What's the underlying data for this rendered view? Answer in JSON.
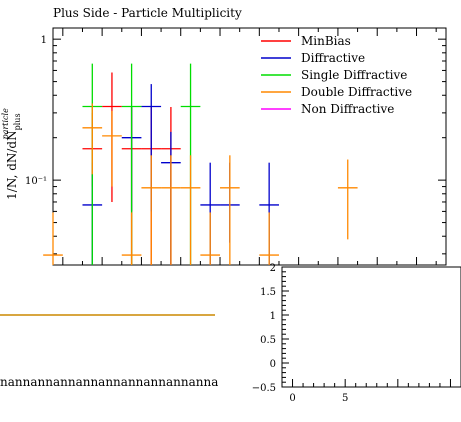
{
  "chart_data": [
    {
      "type": "scatter",
      "title": "Plus Side - Particle Multiplicity",
      "ylabel": "1/N, dN/dN",
      "ylabel_sup": "particle",
      "ylabel_sub": "plus",
      "y_scale": "log",
      "ylim": [
        0.025,
        1.2
      ],
      "xlim": [
        -0.5,
        19.5
      ],
      "ytick_labels": [
        "1",
        "10⁻¹"
      ],
      "ytick_values": [
        1,
        0.1
      ],
      "legend_placement": "top-right",
      "colors": {
        "MinBias": "#ff0000",
        "Diffractive": "#0000cc",
        "Single Diffractive": "#00dd00",
        "Double Diffractive": "#ff8800",
        "Non Diffractive": "#ff00ff"
      },
      "series": [
        {
          "name": "MinBias",
          "color": "#ff0000",
          "points": [
            {
              "x": 1.5,
              "y": 0.167,
              "ylo": 0.09,
              "yhi": 0.3
            },
            {
              "x": 2.5,
              "y": 0.333,
              "ylo": 0.07,
              "yhi": 0.58
            },
            {
              "x": 3.5,
              "y": 0.167,
              "ylo": 0.025,
              "yhi": 0.33
            },
            {
              "x": 4.5,
              "y": 0.167,
              "ylo": 0.025,
              "yhi": 0.33
            },
            {
              "x": 5.5,
              "y": 0.167,
              "ylo": 0.025,
              "yhi": 0.33
            }
          ]
        },
        {
          "name": "Diffractive",
          "color": "#0000cc",
          "points": [
            {
              "x": 1.5,
              "y": 0.0667,
              "ylo": 0.025,
              "yhi": 0.133
            },
            {
              "x": 3.5,
              "y": 0.2,
              "ylo": 0.06,
              "yhi": 0.33
            },
            {
              "x": 4.5,
              "y": 0.333,
              "ylo": 0.06,
              "yhi": 0.48
            },
            {
              "x": 5.5,
              "y": 0.133,
              "ylo": 0.025,
              "yhi": 0.22
            },
            {
              "x": 7.5,
              "y": 0.0667,
              "ylo": 0.025,
              "yhi": 0.133
            },
            {
              "x": 8.5,
              "y": 0.0667,
              "ylo": 0.036,
              "yhi": 0.133
            },
            {
              "x": 10.5,
              "y": 0.0667,
              "ylo": 0.025,
              "yhi": 0.133
            }
          ]
        },
        {
          "name": "Single Diffractive",
          "color": "#00dd00",
          "points": [
            {
              "x": 1.5,
              "y": 0.333,
              "ylo": 0.025,
              "yhi": 0.67
            },
            {
              "x": 3.5,
              "y": 0.333,
              "ylo": 0.025,
              "yhi": 0.67
            },
            {
              "x": 6.5,
              "y": 0.333,
              "ylo": 0.025,
              "yhi": 0.67
            }
          ]
        },
        {
          "name": "Double Diffractive",
          "color": "#ff8800",
          "points": [
            {
              "x": -0.5,
              "y": 0.0294,
              "ylo": 0.025,
              "yhi": 0.059
            },
            {
              "x": 1.5,
              "y": 0.235,
              "ylo": 0.11,
              "yhi": 0.35
            },
            {
              "x": 2.5,
              "y": 0.206,
              "ylo": 0.09,
              "yhi": 0.31
            },
            {
              "x": 3.5,
              "y": 0.0294,
              "ylo": 0.025,
              "yhi": 0.059
            },
            {
              "x": 4.5,
              "y": 0.0882,
              "ylo": 0.025,
              "yhi": 0.15
            },
            {
              "x": 5.5,
              "y": 0.0882,
              "ylo": 0.025,
              "yhi": 0.15
            },
            {
              "x": 6.5,
              "y": 0.0882,
              "ylo": 0.025,
              "yhi": 0.15
            },
            {
              "x": 7.5,
              "y": 0.0294,
              "ylo": 0.025,
              "yhi": 0.059
            },
            {
              "x": 8.5,
              "y": 0.0882,
              "ylo": 0.025,
              "yhi": 0.15
            },
            {
              "x": 10.5,
              "y": 0.0294,
              "ylo": 0.025,
              "yhi": 0.059
            },
            {
              "x": 14.5,
              "y": 0.0882,
              "ylo": 0.038,
              "yhi": 0.14
            }
          ]
        },
        {
          "name": "Non Diffractive",
          "color": "#ff00ff",
          "points": []
        }
      ]
    },
    {
      "type": "line",
      "title": "",
      "ylim": [
        -0.5,
        2
      ],
      "xlim": [
        -1,
        16
      ],
      "ytick_labels": [
        "2",
        "1.5",
        "1",
        "0.5",
        "0",
        "−0.5"
      ],
      "ytick_values": [
        2,
        1.5,
        1,
        0.5,
        0,
        -0.5
      ],
      "xtick_labels": [
        "0",
        "5"
      ],
      "xtick_values": [
        0,
        5
      ],
      "series": [
        {
          "color": "#cc8800",
          "x": [
            -0.5,
            19.5
          ],
          "y": [
            1,
            1
          ]
        }
      ],
      "nan_text": "nannannannannannannannannannannan"
    }
  ]
}
